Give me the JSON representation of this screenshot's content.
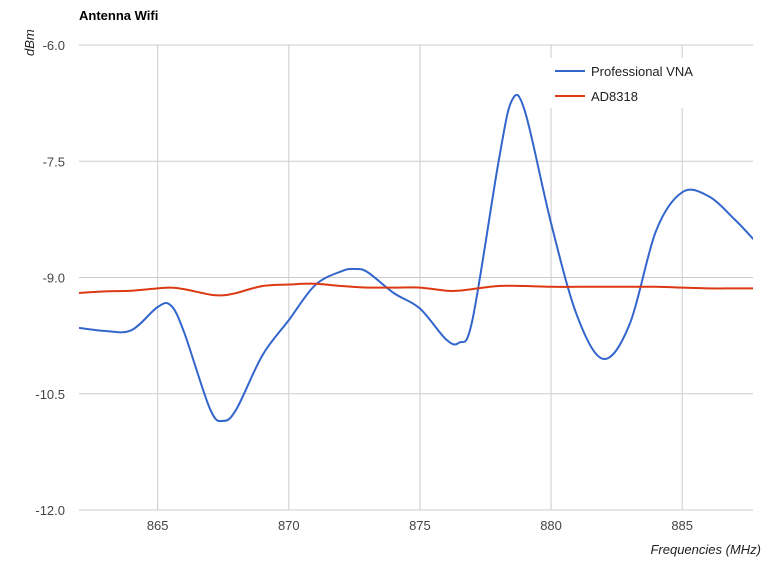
{
  "chart_data": {
    "type": "line",
    "title": "Antenna Wifi",
    "xlabel": "Frequencies (MHz)",
    "ylabel": "dBm",
    "xlim": [
      862,
      887.7
    ],
    "ylim": [
      -12.0,
      -6.0
    ],
    "x_ticks": [
      865,
      870,
      875,
      880,
      885
    ],
    "x_tick_labels": [
      "865",
      "870",
      "875",
      "880",
      "885"
    ],
    "y_ticks": [
      -6.0,
      -7.5,
      -9.0,
      -10.5,
      -12.0
    ],
    "y_tick_labels": [
      "-6.0",
      "-7.5",
      "-9.0",
      "-10.5",
      "-12.0"
    ],
    "grid": true,
    "legend_position": "top-right",
    "series": [
      {
        "name": "Professional VNA",
        "color": "#3366cc",
        "x": [
          862,
          863,
          864,
          865,
          865.5,
          866,
          867,
          867.5,
          868,
          869,
          870,
          871,
          872,
          872.5,
          873,
          874,
          875,
          876,
          876.5,
          877,
          878,
          878.5,
          879,
          880,
          881,
          882,
          883,
          884,
          885,
          886,
          887,
          887.7
        ],
        "y": [
          -9.65,
          -9.69,
          -9.68,
          -9.38,
          -9.36,
          -9.7,
          -10.7,
          -10.85,
          -10.7,
          -10.0,
          -9.55,
          -9.1,
          -8.92,
          -8.89,
          -8.93,
          -9.2,
          -9.4,
          -9.8,
          -9.84,
          -9.55,
          -7.5,
          -6.72,
          -6.85,
          -8.3,
          -9.5,
          -10.05,
          -9.6,
          -8.4,
          -7.9,
          -7.95,
          -8.25,
          -8.5
        ]
      },
      {
        "name": "AD8318",
        "color": "#dc3912",
        "x": [
          862,
          863,
          864,
          865,
          865.5,
          866,
          867,
          867.5,
          868,
          869,
          870,
          871,
          872,
          873,
          874,
          875,
          876,
          876.5,
          877,
          878,
          879,
          880,
          881,
          882,
          883,
          884,
          885,
          886,
          887,
          887.7
        ],
        "y": [
          -9.2,
          -9.18,
          -9.17,
          -9.14,
          -9.13,
          -9.15,
          -9.22,
          -9.23,
          -9.2,
          -9.11,
          -9.09,
          -9.08,
          -9.11,
          -9.13,
          -9.13,
          -9.13,
          -9.17,
          -9.17,
          -9.15,
          -9.11,
          -9.11,
          -9.12,
          -9.12,
          -9.12,
          -9.12,
          -9.12,
          -9.13,
          -9.14,
          -9.14,
          -9.14
        ]
      }
    ]
  }
}
